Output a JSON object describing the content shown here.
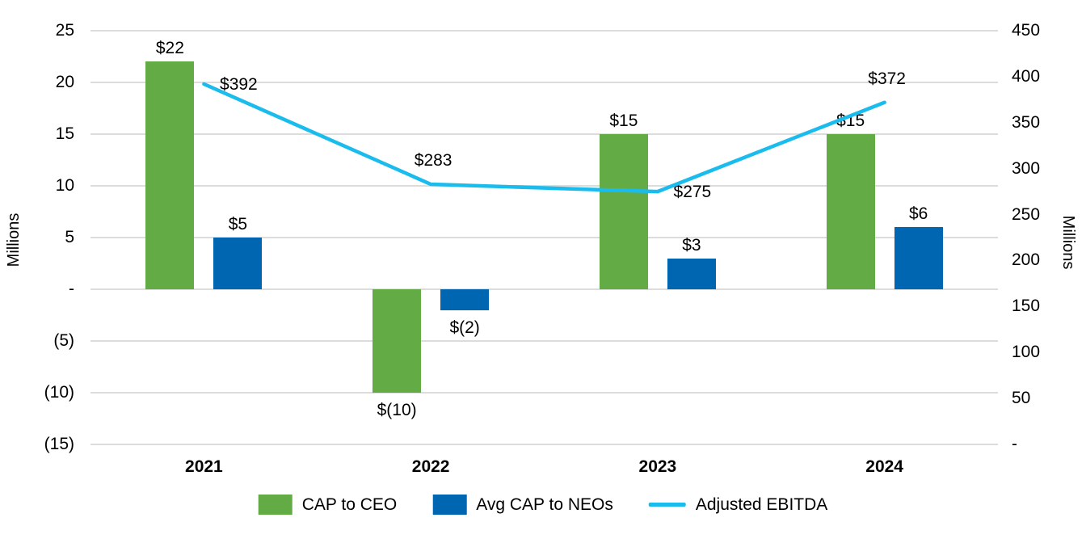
{
  "chart_data": {
    "type": "combo",
    "categories": [
      "2021",
      "2022",
      "2023",
      "2024"
    ],
    "series": [
      {
        "name": "CAP to CEO",
        "type": "bar",
        "axis": "left",
        "color": "#63AC45",
        "values": [
          22,
          -10,
          15,
          15
        ],
        "labels": [
          "$22",
          "$(10)",
          "$15",
          "$15"
        ]
      },
      {
        "name": "Avg CAP to NEOs",
        "type": "bar",
        "axis": "left",
        "color": "#0066B2",
        "values": [
          5,
          -2,
          3,
          6
        ],
        "labels": [
          "$5",
          "$(2)",
          "$3",
          "$6"
        ]
      },
      {
        "name": "Adjusted EBITDA",
        "type": "line",
        "axis": "right",
        "color": "#1ABCEE",
        "values": [
          392,
          283,
          275,
          372
        ],
        "labels": [
          "$392",
          "$283",
          "$275",
          "$372"
        ],
        "label_positions": [
          "right",
          "above",
          "right",
          "above"
        ]
      }
    ],
    "left_axis": {
      "title": "Millions",
      "min": -15,
      "max": 25,
      "step": 5,
      "tick_labels": [
        "25",
        "20",
        "15",
        "10",
        "5",
        "-",
        "(5)",
        "(10)",
        "(15)"
      ]
    },
    "right_axis": {
      "title": "Millions",
      "min": 0,
      "max": 450,
      "step": 50,
      "tick_labels": [
        "450",
        "400",
        "350",
        "300",
        "250",
        "200",
        "150",
        "100",
        "50",
        "-"
      ]
    },
    "legend": [
      {
        "label": "CAP to CEO",
        "swatch": "rect",
        "color": "#63AC45"
      },
      {
        "label": "Avg CAP to NEOs",
        "swatch": "rect",
        "color": "#0066B2"
      },
      {
        "label": "Adjusted EBITDA",
        "swatch": "line",
        "color": "#1ABCEE"
      }
    ],
    "grid": true,
    "grid_color": "#dcdcdc",
    "text_color": "#000000"
  }
}
